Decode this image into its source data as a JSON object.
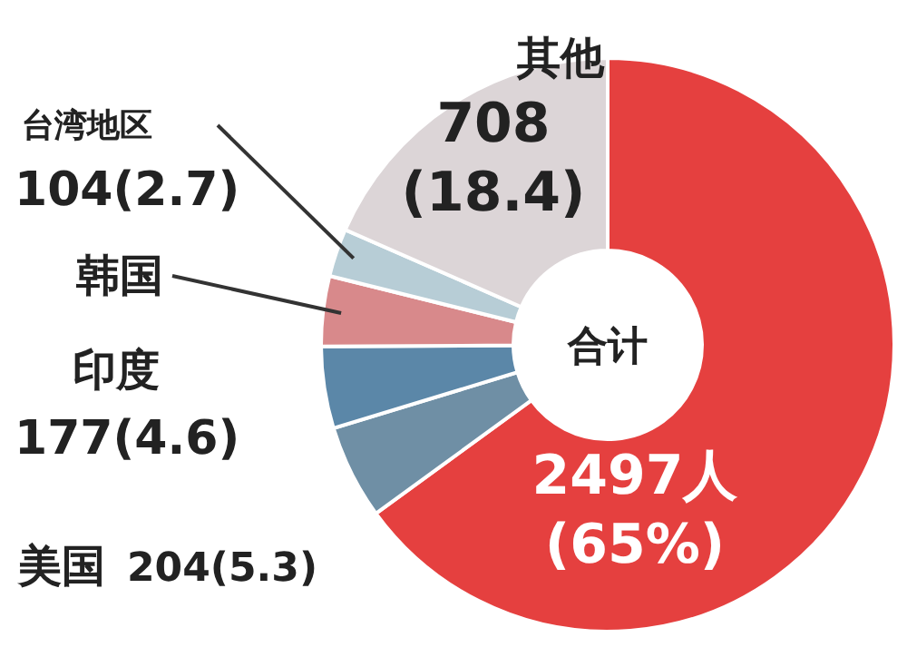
{
  "chart_data": {
    "type": "donut",
    "categories": [
      null,
      "美国",
      "印度",
      "韩国",
      "台湾地区",
      "其他"
    ],
    "values": [
      2497,
      204,
      177,
      152,
      104,
      708
    ],
    "colors": [
      "#e5403f",
      "#6f8fa5",
      "#5b87a8",
      "#d8898b",
      "#b7cdd6",
      "#dcd5d7"
    ],
    "value_labels": [
      "2497人 (65%)",
      "204(5.3)",
      "177(4.6)",
      null,
      "104(2.7)",
      "708 (18.4)"
    ],
    "annotations": [
      "合计"
    ]
  }
}
